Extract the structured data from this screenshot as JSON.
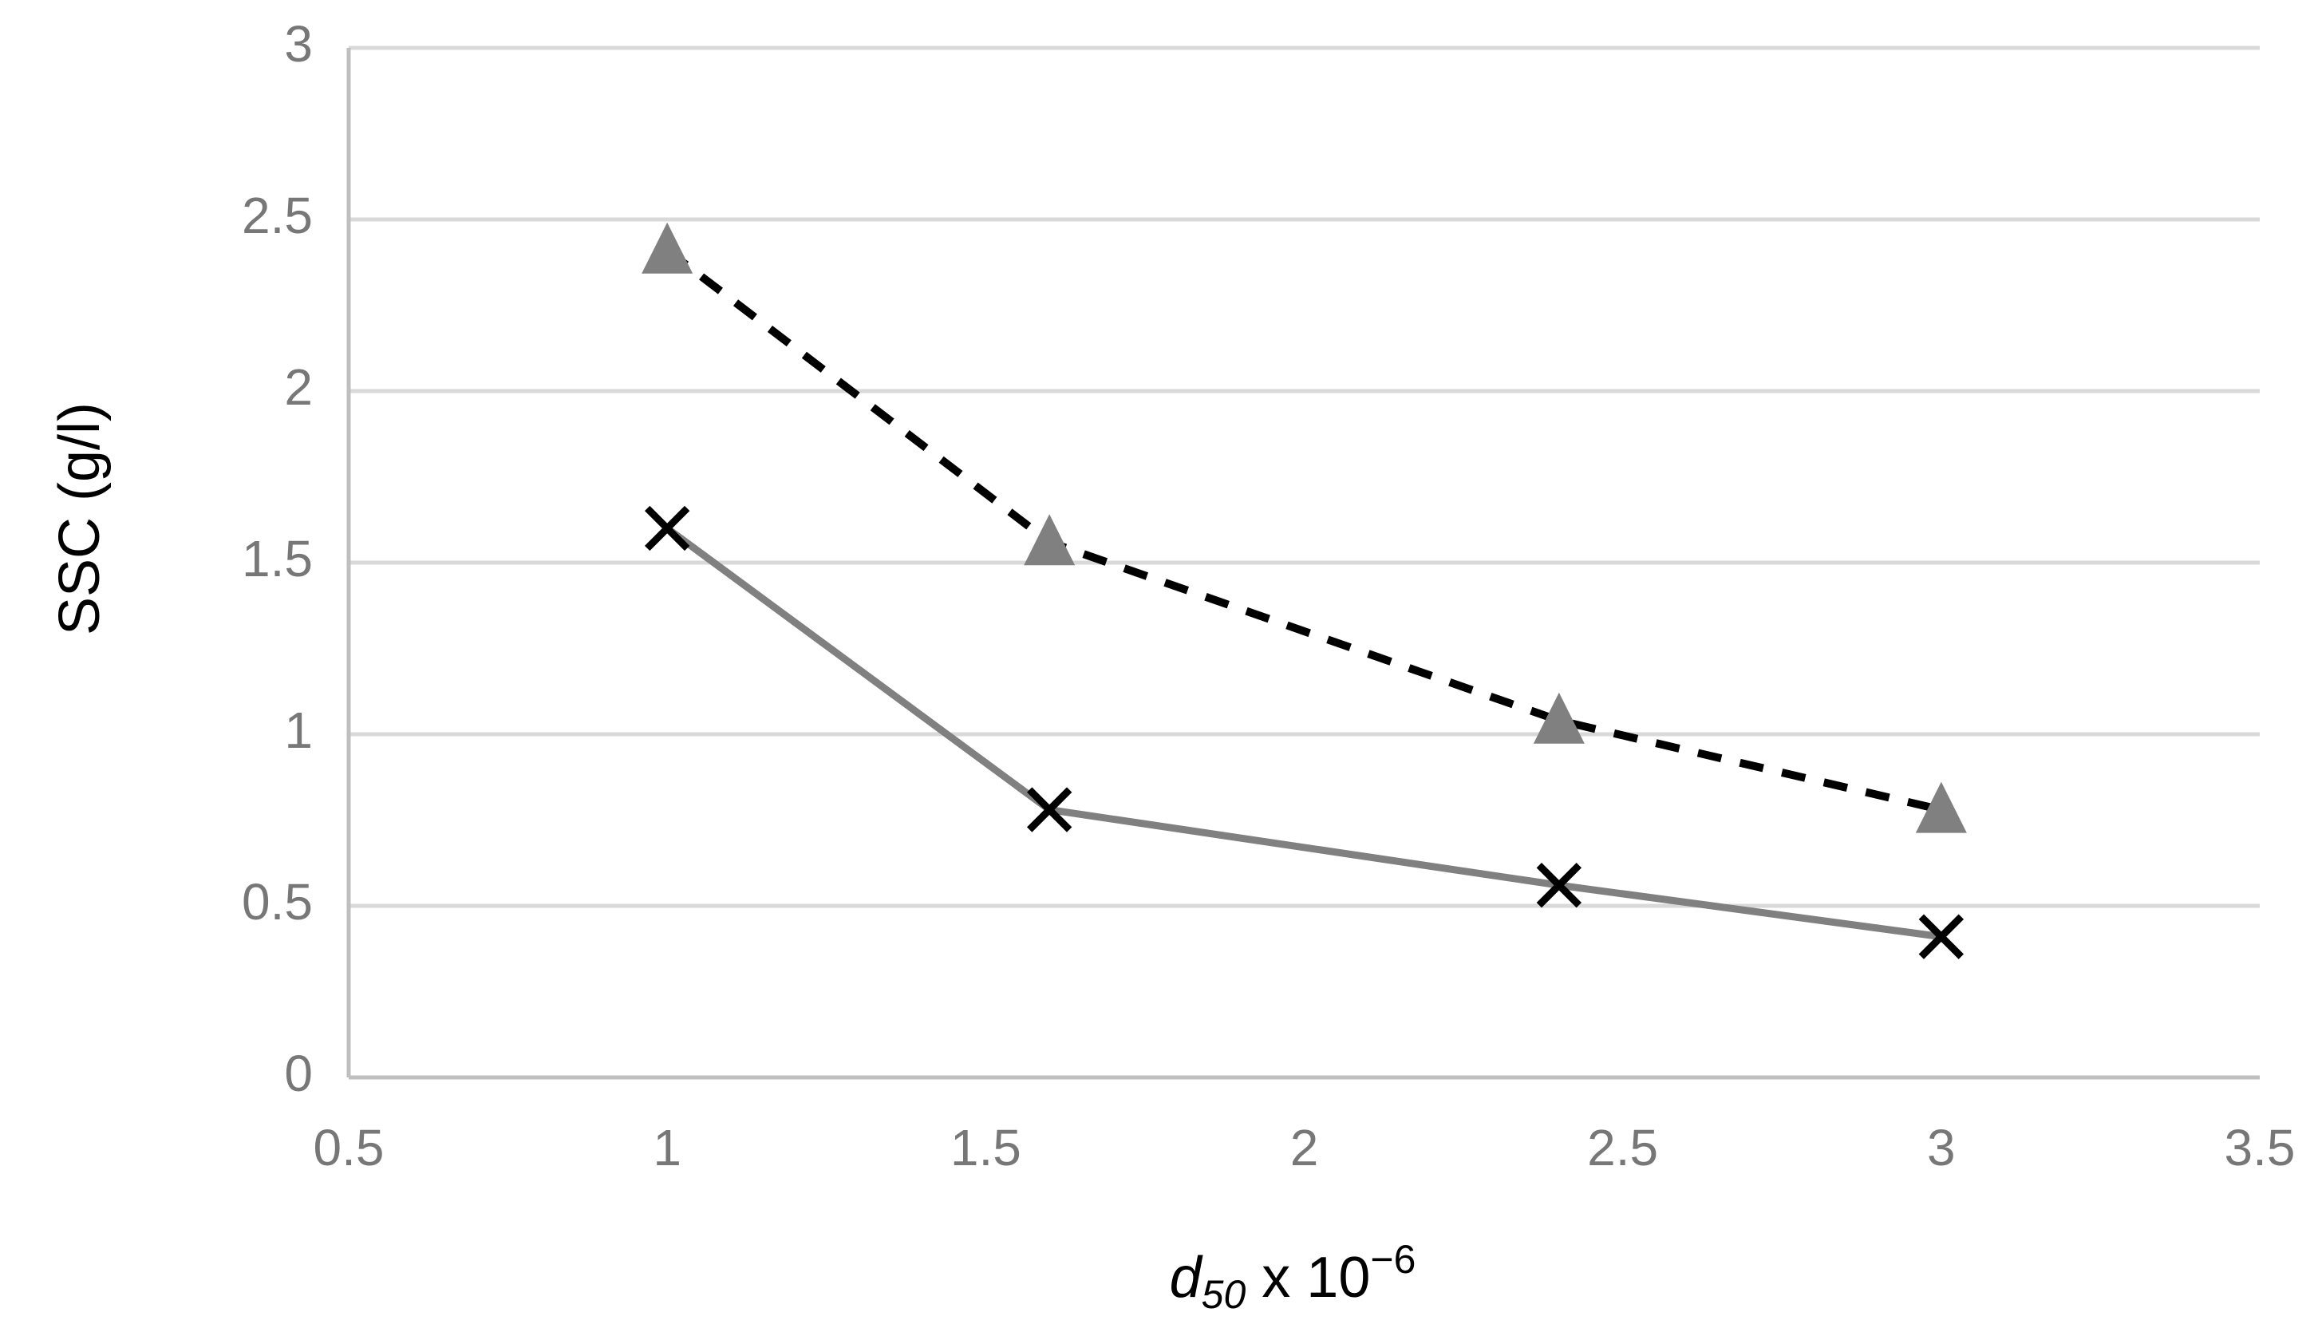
{
  "chart_data": {
    "type": "line",
    "title": "",
    "xlabel": {
      "symbol": "d",
      "subscript": "50",
      "suffix": " x 10",
      "exponent": "−6"
    },
    "ylabel": "SSC (g/l)",
    "xlim": [
      0.5,
      3.5
    ],
    "ylim": [
      0,
      3
    ],
    "x_ticks": [
      "0.5",
      "1",
      "1.5",
      "2",
      "2.5",
      "3",
      "3.5"
    ],
    "y_ticks": [
      "0",
      "0.5",
      "1",
      "1.5",
      "2",
      "2.5",
      "3"
    ],
    "grid": true,
    "legend": "none",
    "series": [
      {
        "name": "series-triangle-dashed",
        "marker": "triangle",
        "line_style": "dashed",
        "line_color": "#000000",
        "marker_color": "#808080",
        "x": [
          1,
          1.6,
          2.4,
          3
        ],
        "y": [
          2.41,
          1.56,
          1.04,
          0.78
        ]
      },
      {
        "name": "series-cross-solid",
        "marker": "x",
        "line_style": "solid",
        "line_color": "#808080",
        "marker_color": "#000000",
        "x": [
          1,
          1.6,
          2.4,
          3
        ],
        "y": [
          1.6,
          0.78,
          0.56,
          0.41
        ]
      }
    ]
  }
}
